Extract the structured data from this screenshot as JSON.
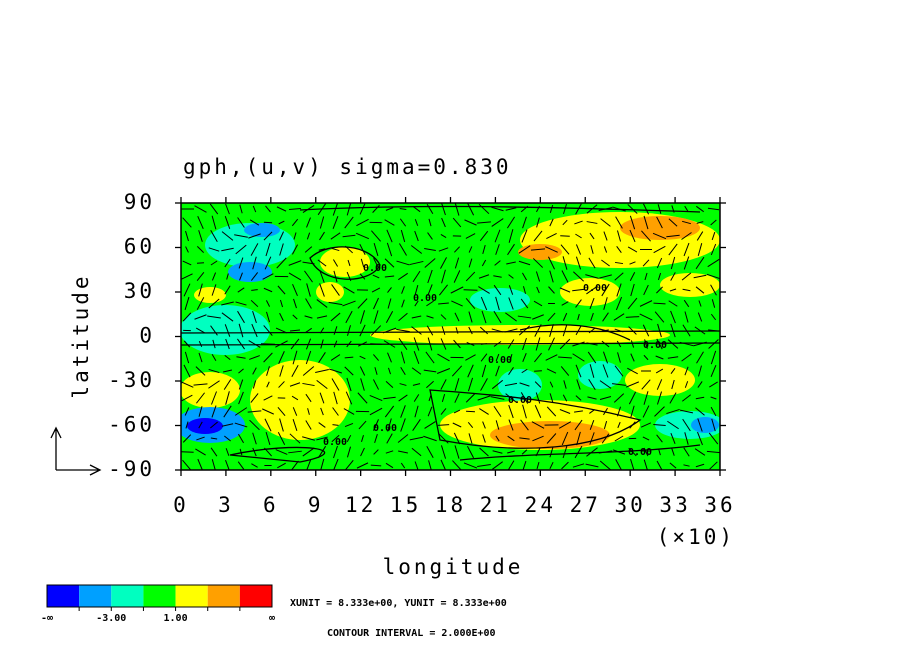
{
  "chart_data": {
    "type": "contour",
    "title": "gph,(u,v) sigma=0.830",
    "x_label": "longitude",
    "y_label": "latitude",
    "x_unit": "(×10)",
    "xlim": [
      0,
      36
    ],
    "xticks": [
      0,
      3,
      6,
      9,
      12,
      15,
      18,
      21,
      24,
      27,
      30,
      33,
      36
    ],
    "ylim": [
      -90,
      90
    ],
    "yticks": [
      90,
      60,
      30,
      0,
      -30,
      -60,
      -90
    ],
    "contour_labels": [
      "0.00",
      "0.00",
      "0.00",
      "0.00",
      "0.00",
      "0.00",
      "0.00",
      "0.00",
      "0.00"
    ],
    "colorbar": {
      "colors": [
        "#0000ff",
        "#00a0ff",
        "#00ffc0",
        "#00ff00",
        "#ffff00",
        "#ffa000",
        "#ff0000"
      ],
      "levels": [
        -5,
        -3,
        -1,
        1,
        3,
        5
      ],
      "ticks": [
        {
          "value": -3,
          "label": "-3.00"
        },
        {
          "value": 1,
          "label": "1.00"
        }
      ],
      "low_label": "-∞",
      "high_label": "∞"
    },
    "notes": [
      "XUNIT = 8.333e+00, YUNIT = 8.333e+00",
      "CONTOUR INTERVAL = 2.000E+00"
    ]
  }
}
